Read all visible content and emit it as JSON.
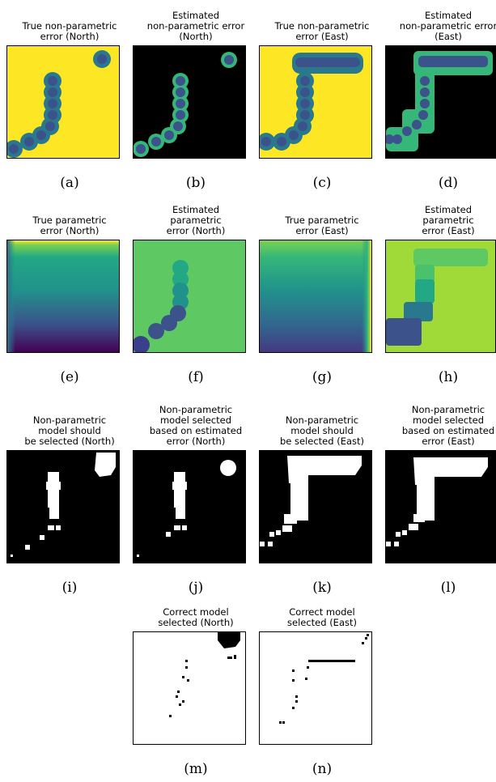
{
  "panels": [
    {
      "id": "a",
      "title": "True non-parametric\nerror (North)",
      "label": "(a)"
    },
    {
      "id": "b",
      "title": "Estimated\nnon-parametric error\n(North)",
      "label": "(b)"
    },
    {
      "id": "c",
      "title": "True non-parametric\nerror (East)",
      "label": "(c)"
    },
    {
      "id": "d",
      "title": "Estimated\nnon-parametric error\n(East)",
      "label": "(d)"
    },
    {
      "id": "e",
      "title": "True parametric\nerror (North)",
      "label": "(e)"
    },
    {
      "id": "f",
      "title": "Estimated\nparametric\nerror (North)",
      "label": "(f)"
    },
    {
      "id": "g",
      "title": "True parametric\nerror (East)",
      "label": "(g)"
    },
    {
      "id": "h",
      "title": "Estimated\nparametric\nerror (East)",
      "label": "(h)"
    },
    {
      "id": "i",
      "title": "Non-parametric\nmodel should\nbe selected (North)",
      "label": "(i)"
    },
    {
      "id": "j",
      "title": "Non-parametric\nmodel selected\nbased on estimated\nerror (North)",
      "label": "(j)"
    },
    {
      "id": "k",
      "title": "Non-parametric\nmodel should\nbe selected (East)",
      "label": "(k)"
    },
    {
      "id": "l",
      "title": "Non-parametric\nmodel selected\nbased on estimated\nerror (East)",
      "label": "(l)"
    },
    {
      "id": "m",
      "title": "Correct model\nselected (North)",
      "label": "(m)"
    },
    {
      "id": "n",
      "title": "Correct model\nselected (East)",
      "label": "(n)"
    }
  ],
  "colors": {
    "yellow": "#fde725",
    "viridis_teal": "#21918c",
    "viridis_navy": "#3b528b",
    "viridis_purple": "#440154",
    "green_bg": "#5ec962",
    "lime_bg": "#a0da39",
    "black": "#000000",
    "white": "#ffffff"
  }
}
